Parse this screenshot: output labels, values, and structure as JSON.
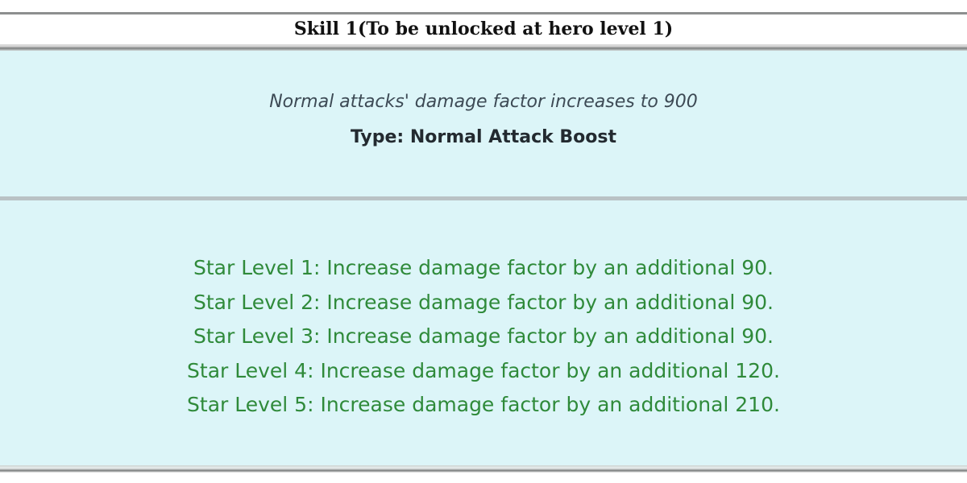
{
  "header": {
    "title": "Skill 1(To be unlocked at hero level 1)"
  },
  "skill": {
    "description": "Normal attacks' damage factor increases to 900",
    "type": "Type: Normal Attack Boost"
  },
  "star_levels": [
    "Star Level 1: Increase damage factor by an additional 90.",
    "Star Level 2: Increase damage factor by an additional 90.",
    "Star Level 3: Increase damage factor by an additional 90.",
    "Star Level 4: Increase damage factor by an additional 120.",
    "Star Level 5: Increase damage factor by an additional 210."
  ],
  "colors": {
    "panel": "#dcf5f8",
    "star_text": "#2f8a3a"
  }
}
